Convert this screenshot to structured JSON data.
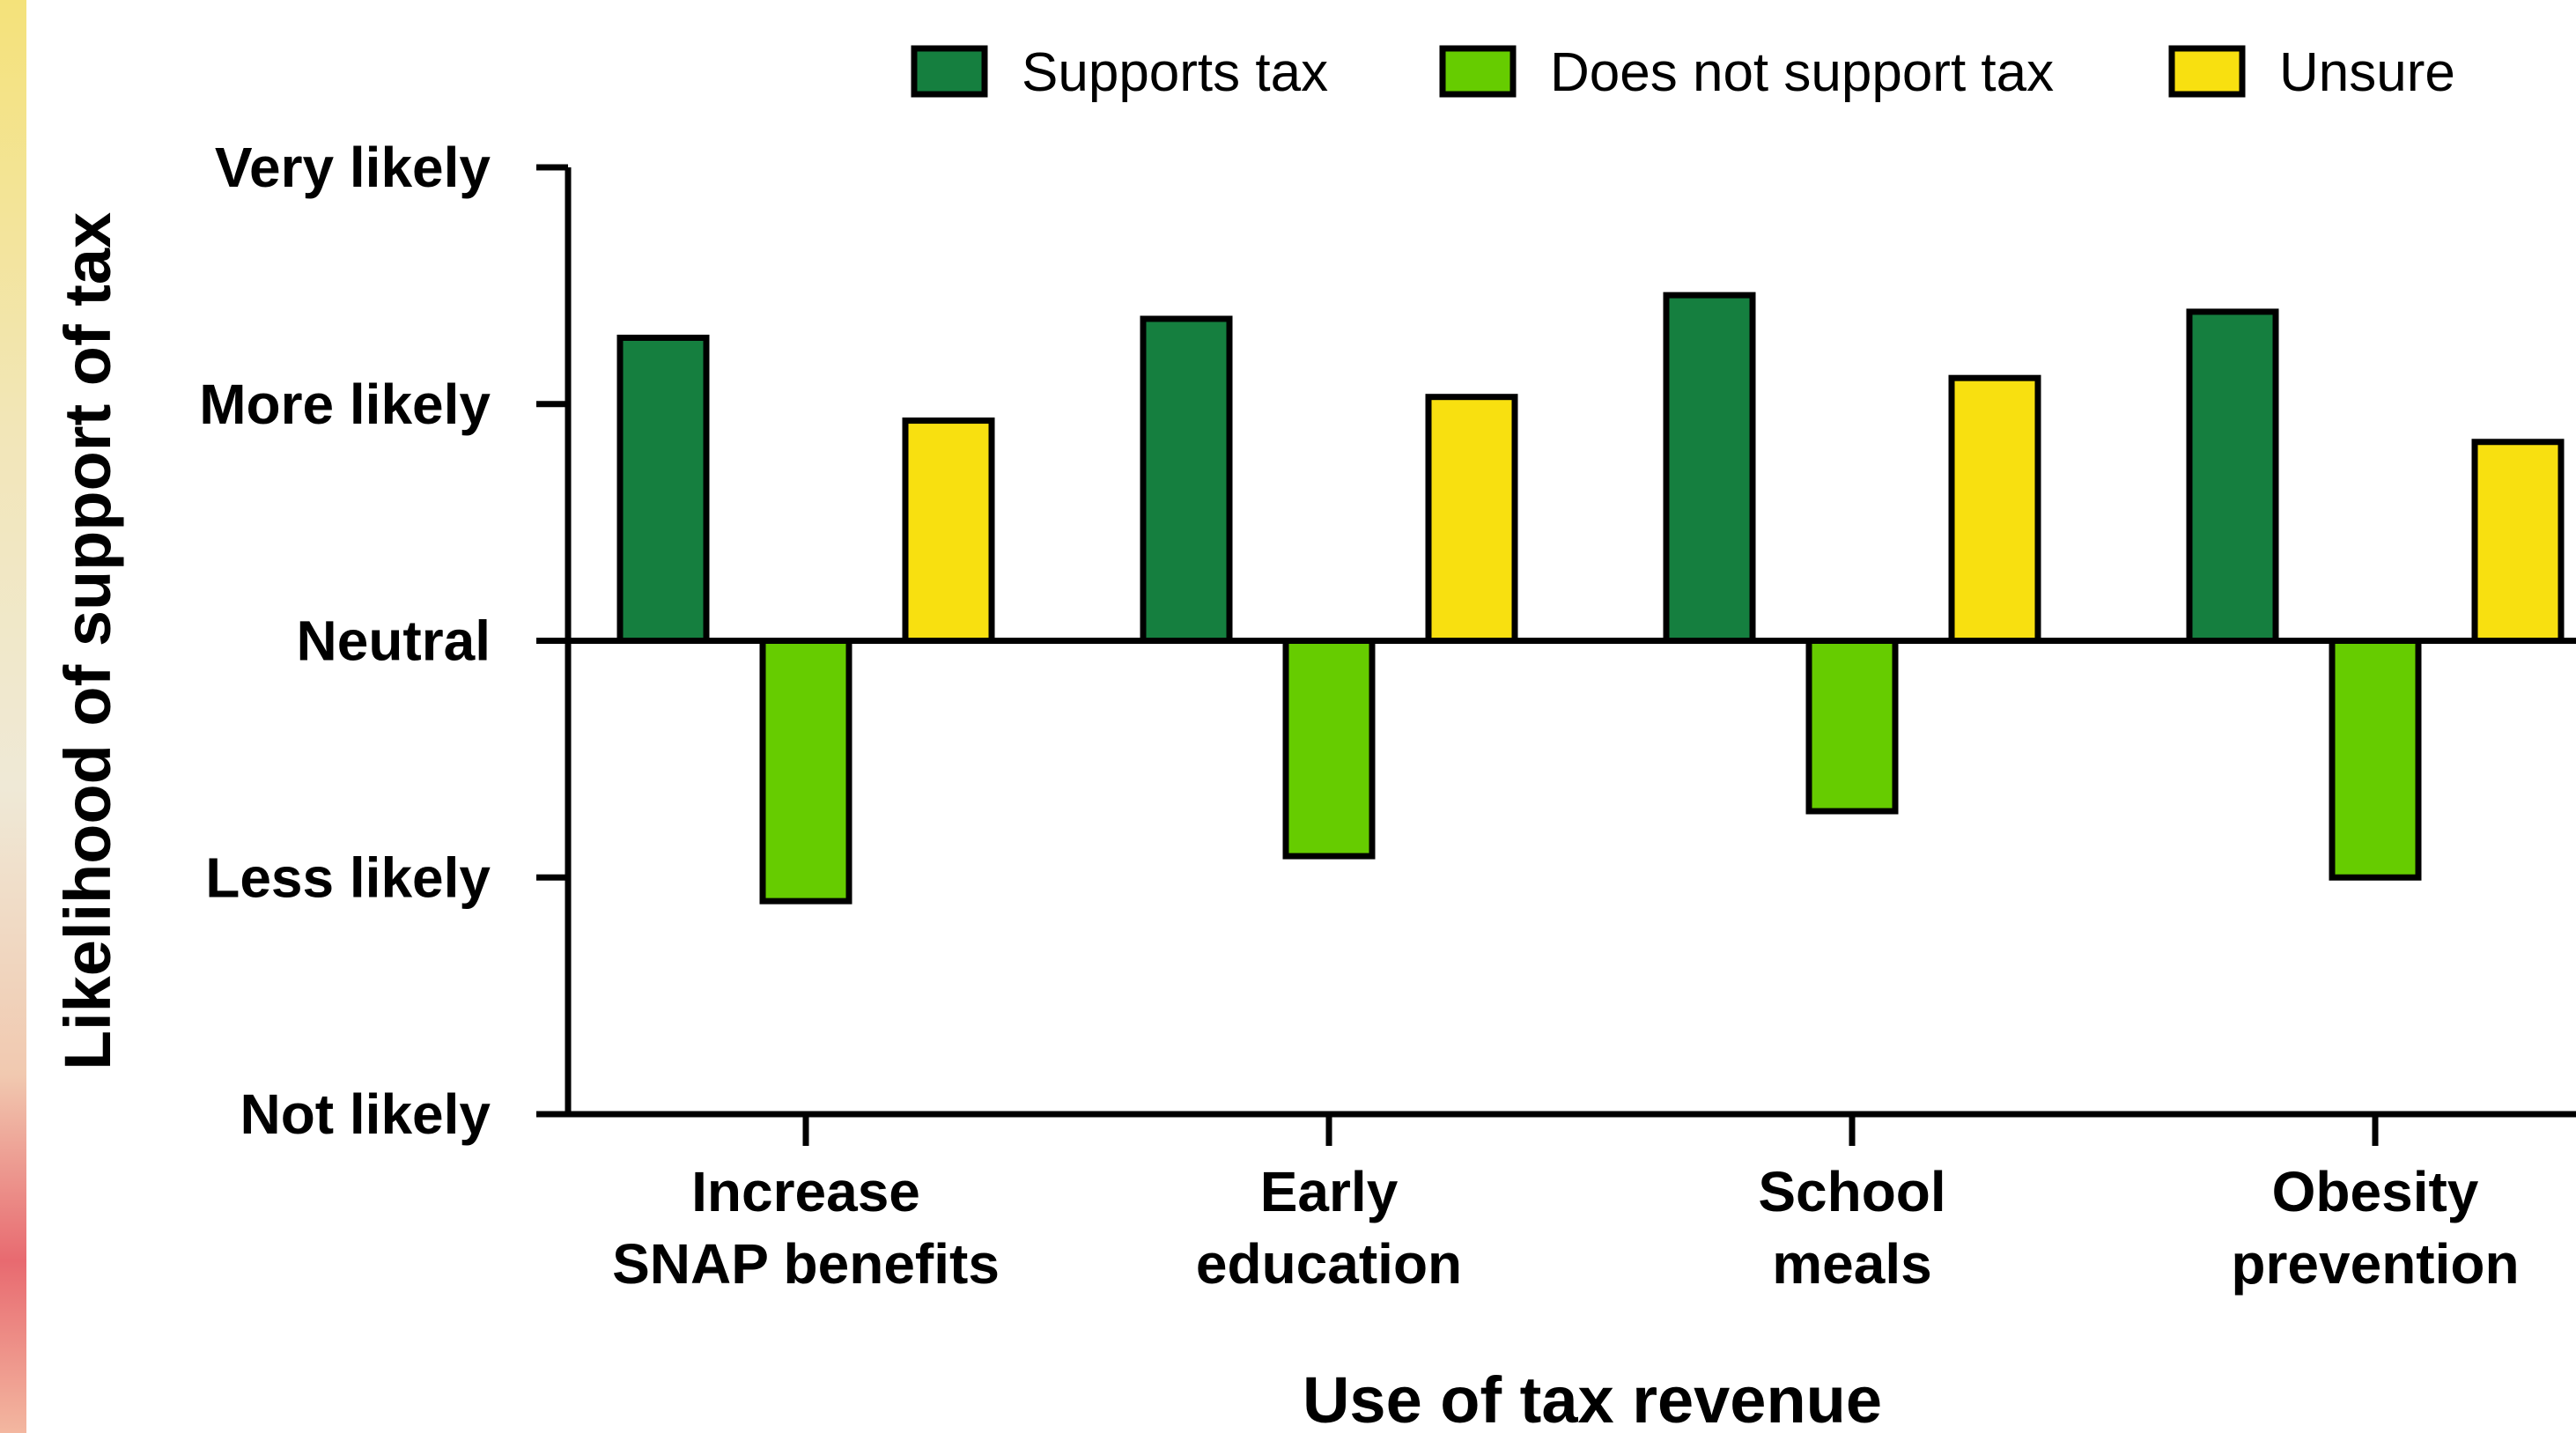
{
  "chart_data": {
    "type": "bar",
    "title": "",
    "xlabel": "Use of tax revenue",
    "ylabel": "Likelihood of support of tax",
    "y_tick_labels": [
      "Not likely",
      "Less likely",
      "Neutral",
      "More likely",
      "Very likely"
    ],
    "y_tick_values": [
      -2,
      -1,
      0,
      1,
      2
    ],
    "ylim": [
      -2,
      2
    ],
    "baseline": 0,
    "categories": [
      "Increase\nSNAP benefits",
      "Early\neducation",
      "School\nmeals",
      "Obesity\nprevention"
    ],
    "series": [
      {
        "name": "Supports tax",
        "color": "#157f3f",
        "values": [
          1.28,
          1.36,
          1.46,
          1.39
        ]
      },
      {
        "name": "Does not support tax",
        "color": "#66cc00",
        "values": [
          -1.1,
          -0.91,
          -0.72,
          -1.0
        ]
      },
      {
        "name": "Unsure",
        "color": "#f8e010",
        "values": [
          0.93,
          1.03,
          1.11,
          0.84
        ]
      }
    ],
    "legend_position": "top",
    "grid": false
  }
}
